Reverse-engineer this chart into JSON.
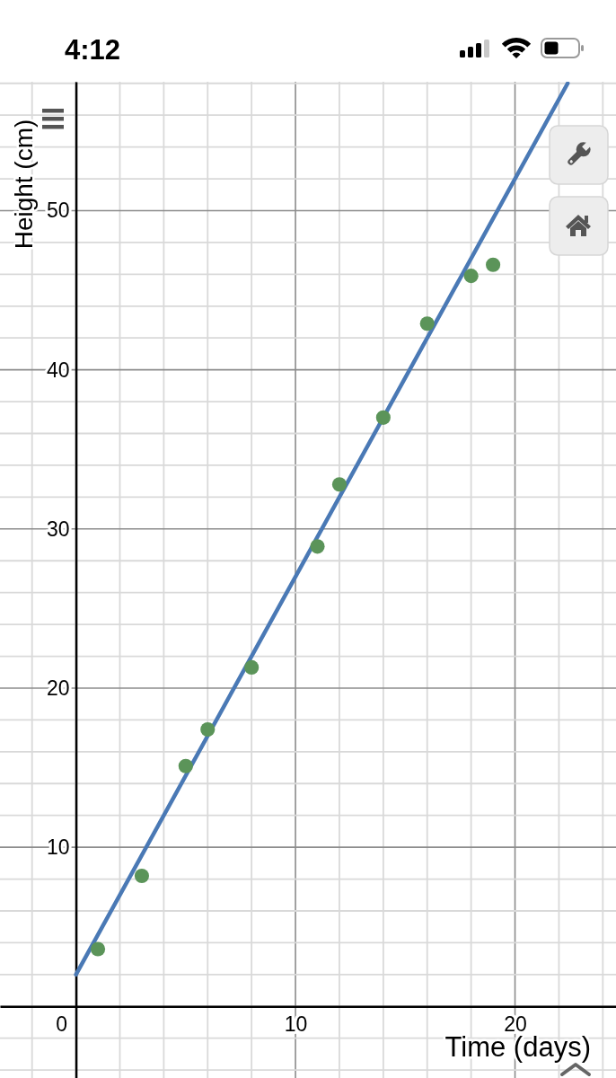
{
  "chart_data": {
    "type": "scatter",
    "xlabel": "Time (days)",
    "ylabel": "Height (cm)",
    "annotations": [
      "4:12"
    ],
    "xlim": [
      -3.46,
      24.6
    ],
    "ylim": [
      -4.5,
      58.1
    ],
    "xticks": [
      {
        "value": -2,
        "label": null
      },
      0,
      {
        "value": 2,
        "label": null
      },
      {
        "value": 4,
        "label": null
      },
      {
        "value": 6,
        "label": null
      },
      {
        "value": 8,
        "label": null
      },
      10,
      {
        "value": 12,
        "label": null
      },
      {
        "value": 14,
        "label": null
      },
      {
        "value": 16,
        "label": null
      },
      {
        "value": 18,
        "label": null
      },
      20,
      {
        "value": 22,
        "label": null
      },
      {
        "value": 24,
        "label": null
      }
    ],
    "yticks": [
      {
        "value": -4,
        "label": null
      },
      {
        "value": -2,
        "label": null
      },
      {
        "value": 0,
        "label": null
      },
      {
        "value": 2,
        "label": null
      },
      {
        "value": 4,
        "label": null
      },
      {
        "value": 6,
        "label": null
      },
      {
        "value": 8,
        "label": null
      },
      10,
      {
        "value": 12,
        "label": null
      },
      {
        "value": 14,
        "label": null
      },
      {
        "value": 16,
        "label": null
      },
      {
        "value": 18,
        "label": null
      },
      20,
      {
        "value": 22,
        "label": null
      },
      {
        "value": 24,
        "label": null
      },
      {
        "value": 26,
        "label": null
      },
      {
        "value": 28,
        "label": null
      },
      30,
      {
        "value": 32,
        "label": null
      },
      {
        "value": 34,
        "label": null
      },
      {
        "value": 36,
        "label": null
      },
      {
        "value": 38,
        "label": null
      },
      40,
      {
        "value": 42,
        "label": null
      },
      {
        "value": 44,
        "label": null
      },
      {
        "value": 46,
        "label": null
      },
      {
        "value": 48,
        "label": null
      },
      50,
      {
        "value": 52,
        "label": null
      },
      {
        "value": 54,
        "label": null
      },
      {
        "value": 56,
        "label": null
      },
      {
        "value": 58,
        "label": null
      }
    ],
    "grid": true,
    "series": [
      {
        "type": "line",
        "color": "#4a79b5",
        "x": [
          0,
          22.4
        ],
        "values": [
          2,
          58
        ]
      },
      {
        "color": "#5b9459",
        "marker": "circle",
        "x": [
          1,
          3,
          5,
          6,
          8,
          11,
          12,
          14,
          16,
          18,
          19
        ],
        "values": [
          3.6,
          8.2,
          15.1,
          17.4,
          21.3,
          28.9,
          32.8,
          37,
          42.9,
          45.9,
          46.6
        ]
      }
    ]
  }
}
